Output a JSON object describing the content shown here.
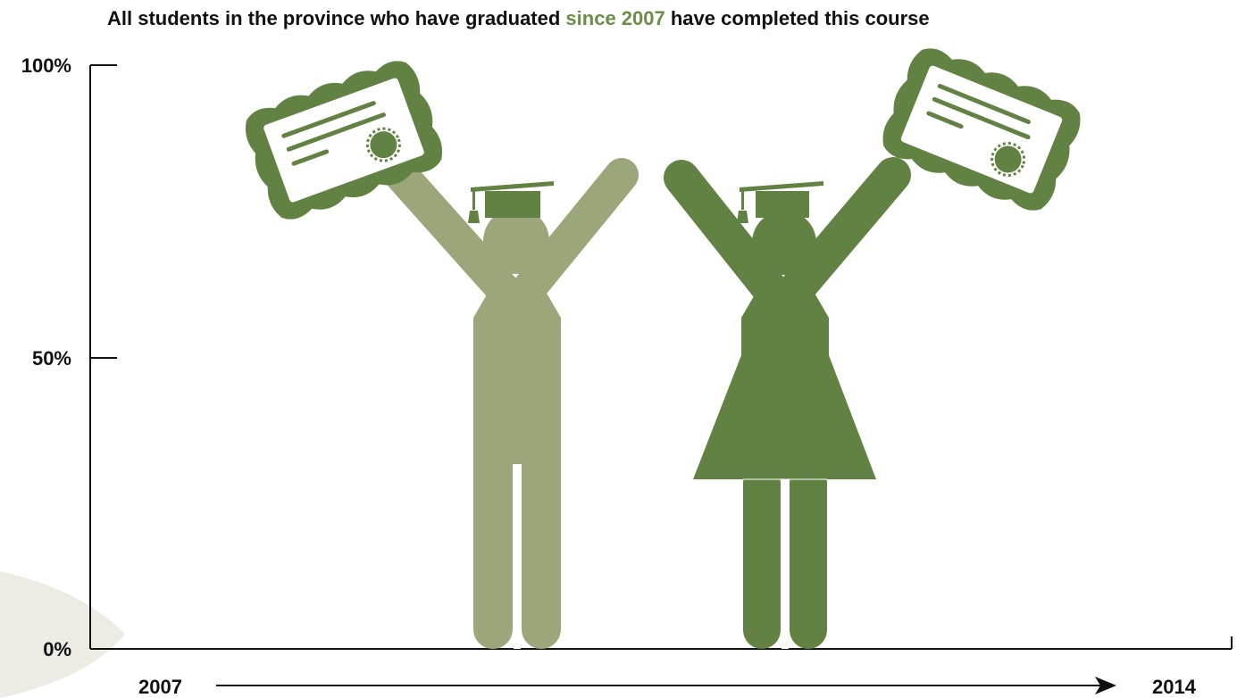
{
  "header": {
    "title_part1": "All students in the province who have graduated ",
    "title_highlight": "since 2007",
    "title_part2": " have completed this course"
  },
  "chart_data": {
    "type": "bar",
    "title": "All students in the province who have graduated since 2007 have completed this course",
    "categories": [
      "male student",
      "female student"
    ],
    "values": [
      100,
      100
    ],
    "yticks": [
      "100%",
      "50%",
      "0%"
    ],
    "ylim": [
      0,
      100
    ],
    "x_start_label": "2007",
    "x_end_label": "2014",
    "grid": false,
    "colors": {
      "male": "#9ca67b",
      "female": "#628243",
      "certificate": "#628243",
      "highlight": "#6a8e45",
      "background_leaf": "#ecece4"
    }
  },
  "icons": [
    "male-graduate-icon",
    "female-graduate-icon",
    "certificate-icon",
    "graduation-cap-icon"
  ]
}
